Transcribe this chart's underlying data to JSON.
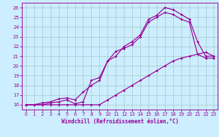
{
  "xlabel": "Windchill (Refroidissement éolien,°C)",
  "bg_color": "#cceeff",
  "line_color": "#990099",
  "grid_color": "#aacccc",
  "xlim": [
    -0.5,
    23.5
  ],
  "ylim": [
    15.5,
    26.5
  ],
  "xticks": [
    0,
    1,
    2,
    3,
    4,
    5,
    6,
    7,
    8,
    9,
    10,
    11,
    12,
    13,
    14,
    15,
    16,
    17,
    18,
    19,
    20,
    21,
    22,
    23
  ],
  "yticks": [
    16,
    17,
    18,
    19,
    20,
    21,
    22,
    23,
    24,
    25,
    26
  ],
  "line1_x": [
    0,
    1,
    2,
    3,
    4,
    5,
    6,
    7,
    8,
    9,
    10,
    11,
    12,
    13,
    14,
    15,
    16,
    17,
    18,
    19,
    20,
    21,
    22,
    23
  ],
  "line1_y": [
    16,
    16,
    16,
    16.2,
    16.3,
    16.5,
    16.1,
    16.3,
    18.5,
    18.8,
    20.5,
    21.0,
    22.0,
    22.5,
    23.2,
    24.8,
    25.2,
    26.0,
    25.8,
    25.3,
    24.8,
    22.5,
    21.0,
    21.0
  ],
  "line2_x": [
    0,
    1,
    2,
    3,
    4,
    5,
    6,
    7,
    8,
    9,
    10,
    11,
    12,
    13,
    14,
    15,
    16,
    17,
    18,
    19,
    20,
    21,
    22,
    23
  ],
  "line2_y": [
    16,
    16,
    16.2,
    16.3,
    16.6,
    16.7,
    16.5,
    17.3,
    18.0,
    18.5,
    20.5,
    21.5,
    21.8,
    22.2,
    23.0,
    24.5,
    25.0,
    25.5,
    25.3,
    24.8,
    24.5,
    21.2,
    20.8,
    20.8
  ],
  "line3_x": [
    0,
    1,
    2,
    3,
    4,
    5,
    6,
    7,
    8,
    9,
    10,
    11,
    12,
    13,
    14,
    15,
    16,
    17,
    18,
    19,
    20,
    21,
    22,
    23
  ],
  "line3_y": [
    16,
    16,
    16,
    16,
    16,
    16,
    16,
    16,
    16,
    16,
    16.5,
    17.0,
    17.5,
    18.0,
    18.5,
    19.0,
    19.5,
    20.0,
    20.5,
    20.8,
    21.0,
    21.2,
    21.4,
    21.0
  ]
}
